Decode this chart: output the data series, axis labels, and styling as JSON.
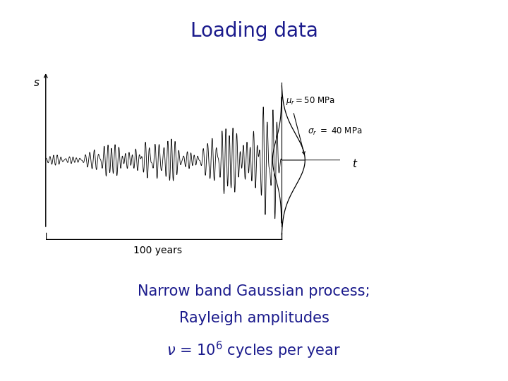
{
  "title": "Loading data",
  "title_color": "#1a1a8c",
  "title_fontsize": 20,
  "bg_color": "#ffffff",
  "line_color": "#000000",
  "text_color": "#1a1a8c",
  "annotation_color": "#000000",
  "s_label": "s",
  "t_label": "t",
  "years_label": "100 years",
  "bottom_line1": "Narrow band Gaussian process;",
  "bottom_line2": "Rayleigh amplitudes",
  "bottom_line3": "ν = 10$^6$ cycles per year"
}
